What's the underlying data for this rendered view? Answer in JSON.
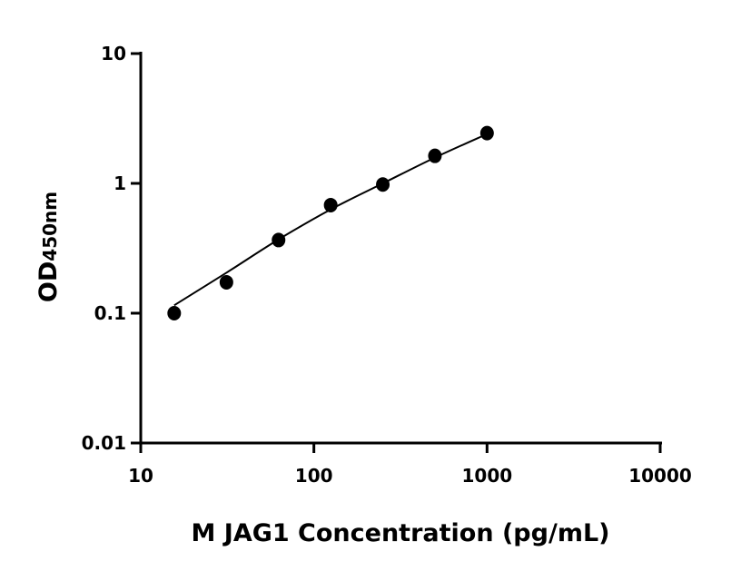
{
  "chart_data": {
    "type": "scatter",
    "title": "",
    "xlabel": "M JAG1 Concentration (pg/mL)",
    "ylabel_main": "OD",
    "ylabel_sub": "450nm",
    "xscale": "log",
    "yscale": "log",
    "xlim": [
      10,
      10000
    ],
    "ylim": [
      0.01,
      10
    ],
    "xticks": [
      "10",
      "100",
      "1000",
      "10000"
    ],
    "xtick_values": [
      10,
      100,
      1000,
      10000
    ],
    "yticks": [
      "0.01",
      "0.1",
      "1",
      "10"
    ],
    "ytick_values": [
      0.01,
      0.1,
      1,
      10
    ],
    "grid": false,
    "legend": "none",
    "point_color": "#000000",
    "series": [
      {
        "x": [
          15.6,
          31.25,
          62.5,
          125,
          250,
          500,
          1000
        ],
        "y": [
          0.1,
          0.173,
          0.366,
          0.68,
          0.98,
          1.63,
          2.44
        ]
      }
    ],
    "fit_curve": {
      "x": [
        15.6,
        31.25,
        62.5,
        125,
        250,
        500,
        1000
      ],
      "y": [
        0.115,
        0.205,
        0.37,
        0.63,
        1.0,
        1.58,
        2.4
      ]
    }
  }
}
